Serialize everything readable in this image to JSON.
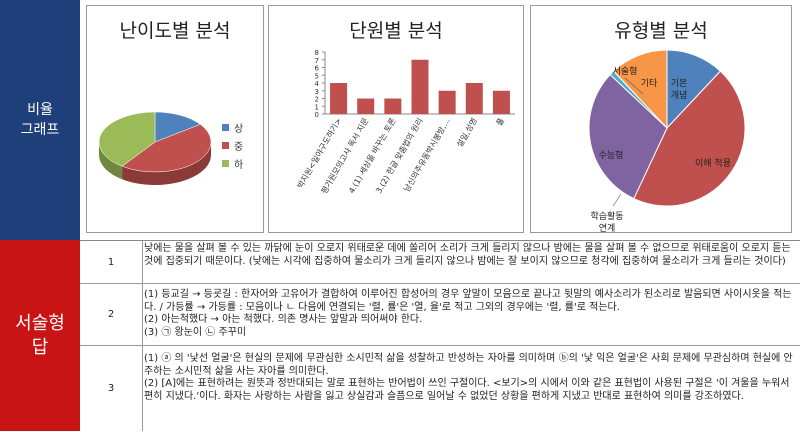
{
  "sidebar": {
    "section1_label": "비율\n그래프",
    "section2_label": "서술형\n답"
  },
  "charts": {
    "difficulty": {
      "title": "난이도별 분석",
      "legend": [
        {
          "label": "상",
          "color": "#4f81bd"
        },
        {
          "label": "중",
          "color": "#c0504d"
        },
        {
          "label": "하",
          "color": "#9bbb59"
        }
      ]
    },
    "unit": {
      "title": "단원별 분석"
    },
    "type": {
      "title": "유형별 분석"
    }
  },
  "chart_data": [
    {
      "type": "pie",
      "title": "난이도별 분석",
      "labels": [
        "상",
        "중",
        "하"
      ],
      "values": [
        15,
        45,
        40
      ],
      "colors": [
        "#4f81bd",
        "#c0504d",
        "#9bbb59"
      ],
      "legend_position": "right",
      "style": "3d"
    },
    {
      "type": "bar",
      "title": "단원별 분석",
      "categories": [
        "박지원<일야구도하기>",
        "평가원모의고사 독서 지문",
        "4.(1) 세상을 바꾸는 토론",
        "3.(2) 한글 맞춤법의 원리",
        "남신의주유동박시봉방,...",
        "설일,성명",
        "풀"
      ],
      "values": [
        4,
        2,
        2,
        7,
        3,
        4,
        3
      ],
      "ylim": [
        0,
        8
      ],
      "yticks": [
        0,
        1,
        2,
        3,
        4,
        5,
        6,
        7,
        8
      ],
      "color": "#c0504d",
      "grid": false
    },
    {
      "type": "pie",
      "title": "유형별 분석",
      "labels": [
        "기본 개념",
        "이해 적용",
        "학습활동 연계",
        "수능형",
        "서술형",
        "기타"
      ],
      "values": [
        12,
        45,
        0,
        30,
        1,
        12
      ],
      "colors": [
        "#4f81bd",
        "#c0504d",
        "#9bbb59",
        "#8064a2",
        "#4bacc6",
        "#f79646"
      ],
      "legend_position": "none"
    }
  ],
  "answers": [
    {
      "num": "1",
      "lines": [
        "낮에는 물을 살펴 볼 수 있는 까닭에 눈이 오로지 위태로운 데에 쏠리어 소리가 크게 들리지 않으나 밤에는 물을 살펴 볼 수 없으므로 위태로움이 오로지 듣는 것에 집중되기 때문이다. (낮에는 시각에 집중하여 물소리가 크게 들리지 않으나 밤에는 잘 보이지 않으므로 청각에 집중하여 물소리가 크게 들리는 것이다)"
      ]
    },
    {
      "num": "2",
      "lines": [
        "(1) 등교길 → 등굣길 : 한자어와 고유어가 결합하여 이루어진 합성어의 경우 앞말이 모음으로 끝나고 뒷말의 예사소리가 된소리로 발음되면 사이시옷을 적는다. / 가등률 → 가등률 : 모음이나 ㄴ 다음에 연결되는 '렬, 률'은 '열, 율'로 적고 그외의 경우에는 '렬, 률'로 적는다.",
        "(2) 아는척했다 → 아는 척했다. 의존 명사는 앞말과 띄어써야 한다.",
        "(3) ㉠ 왕눈이 ㉡ 주꾸미"
      ]
    },
    {
      "num": "3",
      "lines": [
        "(1) ⓐ 의 '낯선 얼굴'은 현실의 문제에 무관심한 소시민적 삶을 성찰하고 반성하는 자아를 의미하며 ⓑ의 '낯 익은 얼굴'은 사회 문제에 무관심하며 현실에 안주하는 소시민적 삶을 사는 자아를 의미한다.",
        "(2) [A]에는 표현하려는 원뜻과 정반대되는 말로 표현하는 반어법이 쓰인 구절이다. <보기>의 시에서 이와 같은 표현법이 사용된 구절은 '이 겨울을 누워서 편히 지냈다.'이다. 화자는 사랑하는 사람을 잃고 상실감과 슬픔으로 일어날 수 없었던 상황을 편하게 지냈고 반대로 표현하여 의미를 강조하였다."
      ]
    }
  ]
}
